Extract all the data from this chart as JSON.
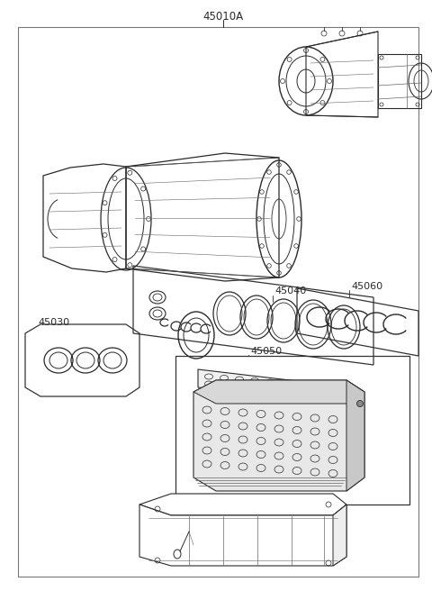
{
  "title": "45010A",
  "label_45040": "45040",
  "label_45060": "45060",
  "label_45030": "45030",
  "label_45050": "45050",
  "bg_color": "#ffffff",
  "lc": "#2a2a2a",
  "lc_light": "#666666"
}
